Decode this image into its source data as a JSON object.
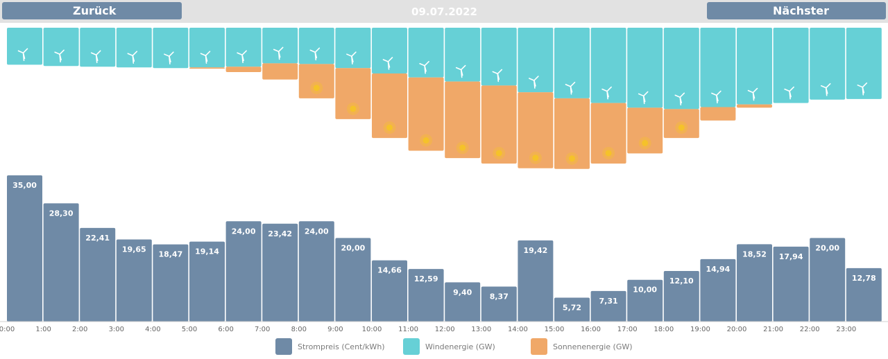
{
  "nav": {
    "back_label": "Zurück",
    "next_label": "Nächster",
    "date": "09.07.2022"
  },
  "colors": {
    "price": "#6f8aa6",
    "wind": "#66d0d6",
    "solar": "#f0a868",
    "sun": "#f5c22a"
  },
  "legend": {
    "price": "Strompreis (Cent/kWh)",
    "wind": "Windenergie (GW)",
    "solar": "Sonnenenergie (GW)"
  },
  "chart_data": {
    "type": "bar",
    "categories": [
      "0:00",
      "1:00",
      "2:00",
      "3:00",
      "4:00",
      "5:00",
      "6:00",
      "7:00",
      "8:00",
      "9:00",
      "10:00",
      "11:00",
      "12:00",
      "13:00",
      "14:00",
      "15:00",
      "16:00",
      "17:00",
      "18:00",
      "19:00",
      "20:00",
      "21:00",
      "22:00",
      "23:00"
    ],
    "series": [
      {
        "name": "Strompreis (Cent/kWh)",
        "values": [
          35.0,
          28.3,
          22.41,
          19.65,
          18.47,
          19.14,
          24.0,
          23.42,
          24.0,
          20.0,
          14.66,
          12.59,
          9.4,
          8.37,
          19.42,
          5.72,
          7.31,
          10.0,
          12.1,
          14.94,
          18.52,
          17.94,
          20.0,
          12.78
        ],
        "labels": [
          "35,00",
          "28,30",
          "22,41",
          "19,65",
          "18,47",
          "19,14",
          "24,00",
          "23,42",
          "24,00",
          "20,00",
          "14,66",
          "12,59",
          "9,40",
          "8,37",
          "19,42",
          "5,72",
          "7,31",
          "10,00",
          "12,10",
          "14,94",
          "18,52",
          "17,94",
          "20,00",
          "12,78"
        ]
      },
      {
        "name": "Windenergie (GW)",
        "values": [
          5.5,
          5.7,
          5.8,
          5.9,
          6.0,
          5.9,
          5.8,
          5.3,
          5.4,
          6.0,
          6.8,
          7.4,
          8.0,
          8.6,
          9.6,
          10.5,
          11.2,
          11.9,
          12.1,
          11.8,
          11.4,
          11.2,
          10.7,
          10.6
        ]
      },
      {
        "name": "Sonnenenergie (GW)",
        "values": [
          0,
          0,
          0,
          0,
          0,
          0.2,
          0.8,
          2.4,
          5.1,
          7.6,
          9.6,
          10.9,
          11.4,
          11.6,
          11.3,
          10.5,
          9.0,
          6.8,
          4.3,
          2.0,
          0.5,
          0,
          0,
          0
        ]
      }
    ],
    "ylim_price": [
      0,
      36
    ],
    "ylim_energy": [
      0,
      21.5
    ]
  }
}
